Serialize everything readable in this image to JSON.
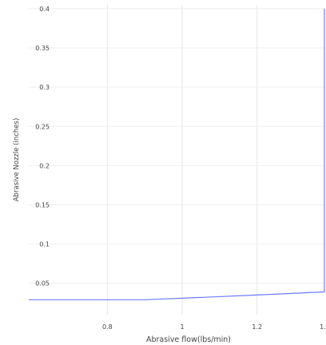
{
  "chart_data": {
    "type": "line",
    "xlabel": "Abrasive flow(lbs/min)",
    "ylabel": "Abrasive Nozzle (inches)",
    "x_ticks": [
      "0.8",
      "1",
      "1.2",
      "1."
    ],
    "y_ticks": [
      "0.05",
      "0.1",
      "0.15",
      "0.2",
      "0.25",
      "0.3",
      "0.35",
      "0.4"
    ],
    "xlim": [
      0.59,
      1.38
    ],
    "ylim": [
      0.01,
      0.405
    ],
    "grid": true,
    "line_color": "#6b7cff",
    "series": [
      {
        "x": [
          0.59,
          0.9,
          1.0,
          1.2,
          1.38,
          1.38
        ],
        "y": [
          0.029,
          0.029,
          0.031,
          0.035,
          0.039,
          0.4
        ]
      }
    ]
  }
}
